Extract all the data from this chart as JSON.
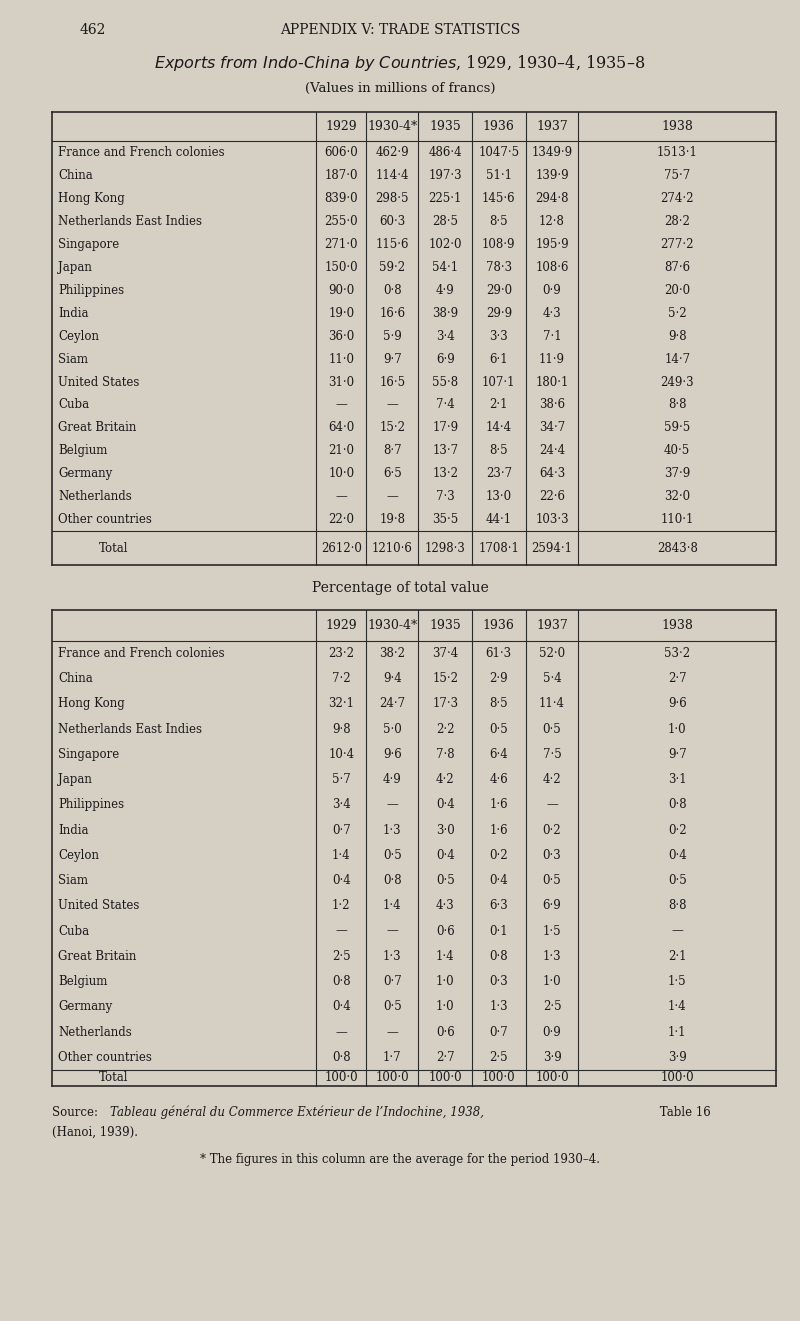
{
  "page_num": "462",
  "header": "APPENDIX V: TRADE STATISTICS",
  "title": "Exports from Indo-China by Countries, 1929, 1930–4, 1935–8",
  "subtitle": "(Values in millions of francs)",
  "table1_cols": [
    "",
    "1929",
    "1930-4*",
    "1935",
    "1936",
    "1937",
    "1938"
  ],
  "table1_rows": [
    [
      "France and French colonies",
      "606·0",
      "462·9",
      "486·4",
      "1047·5",
      "1349·9",
      "1513·1"
    ],
    [
      "China",
      "187·0",
      "114·4",
      "197·3",
      "51·1",
      "139·9",
      "75·7"
    ],
    [
      "Hong Kong",
      "839·0",
      "298·5",
      "225·1",
      "145·6",
      "294·8",
      "274·2"
    ],
    [
      "Netherlands East Indies",
      "255·0",
      "60·3",
      "28·5",
      "8·5",
      "12·8",
      "28·2"
    ],
    [
      "Singapore",
      "271·0",
      "115·6",
      "102·0",
      "108·9",
      "195·9",
      "277·2"
    ],
    [
      "Japan",
      "150·0",
      "59·2",
      "54·1",
      "78·3",
      "108·6",
      "87·6"
    ],
    [
      "Philippines",
      "90·0",
      "0·8",
      "4·9",
      "29·0",
      "0·9",
      "20·0"
    ],
    [
      "India",
      "19·0",
      "16·6",
      "38·9",
      "29·9",
      "4·3",
      "5·2"
    ],
    [
      "Ceylon",
      "36·0",
      "5·9",
      "3·4",
      "3·3",
      "7·1",
      "9·8"
    ],
    [
      "Siam",
      "11·0",
      "9·7",
      "6·9",
      "6·1",
      "11·9",
      "14·7"
    ],
    [
      "United States",
      "31·0",
      "16·5",
      "55·8",
      "107·1",
      "180·1",
      "249·3"
    ],
    [
      "Cuba",
      "—",
      "—",
      "7·4",
      "2·1",
      "38·6",
      "8·8"
    ],
    [
      "Great Britain",
      "64·0",
      "15·2",
      "17·9",
      "14·4",
      "34·7",
      "59·5"
    ],
    [
      "Belgium",
      "21·0",
      "8·7",
      "13·7",
      "8·5",
      "24·4",
      "40·5"
    ],
    [
      "Germany",
      "10·0",
      "6·5",
      "13·2",
      "23·7",
      "64·3",
      "37·9"
    ],
    [
      "Netherlands",
      "—",
      "—",
      "7·3",
      "13·0",
      "22·6",
      "32·0"
    ],
    [
      "Other countries",
      "22·0",
      "19·8",
      "35·5",
      "44·1",
      "103·3",
      "110·1"
    ]
  ],
  "table1_total": [
    "Total",
    "2612·0",
    "1210·6",
    "1298·3",
    "1708·1",
    "2594·1",
    "2843·8"
  ],
  "table2_title": "Percentage of total value",
  "table2_cols": [
    "",
    "1929",
    "1930-4*",
    "1935",
    "1936",
    "1937",
    "1938"
  ],
  "table2_rows": [
    [
      "France and French colonies",
      "23·2",
      "38·2",
      "37·4",
      "61·3",
      "52·0",
      "53·2"
    ],
    [
      "China",
      "7·2",
      "9·4",
      "15·2",
      "2·9",
      "5·4",
      "2·7"
    ],
    [
      "Hong Kong",
      "32·1",
      "24·7",
      "17·3",
      "8·5",
      "11·4",
      "9·6"
    ],
    [
      "Netherlands East Indies",
      "9·8",
      "5·0",
      "2·2",
      "0·5",
      "0·5",
      "1·0"
    ],
    [
      "Singapore",
      "10·4",
      "9·6",
      "7·8",
      "6·4",
      "7·5",
      "9·7"
    ],
    [
      "Japan",
      "5·7",
      "4·9",
      "4·2",
      "4·6",
      "4·2",
      "3·1"
    ],
    [
      "Philippines",
      "3·4",
      "—",
      "0·4",
      "1·6",
      "—",
      "0·8"
    ],
    [
      "India",
      "0·7",
      "1·3",
      "3·0",
      "1·6",
      "0·2",
      "0·2"
    ],
    [
      "Ceylon",
      "1·4",
      "0·5",
      "0·4",
      "0·2",
      "0·3",
      "0·4"
    ],
    [
      "Siam",
      "0·4",
      "0·8",
      "0·5",
      "0·4",
      "0·5",
      "0·5"
    ],
    [
      "United States",
      "1·2",
      "1·4",
      "4·3",
      "6·3",
      "6·9",
      "8·8"
    ],
    [
      "Cuba",
      "—",
      "—",
      "0·6",
      "0·1",
      "1·5",
      "—"
    ],
    [
      "Great Britain",
      "2·5",
      "1·3",
      "1·4",
      "0·8",
      "1·3",
      "2·1"
    ],
    [
      "Belgium",
      "0·8",
      "0·7",
      "1·0",
      "0·3",
      "1·0",
      "1·5"
    ],
    [
      "Germany",
      "0·4",
      "0·5",
      "1·0",
      "1·3",
      "2·5",
      "1·4"
    ],
    [
      "Netherlands",
      "—",
      "—",
      "0·6",
      "0·7",
      "0·9",
      "1·1"
    ],
    [
      "Other countries",
      "0·8",
      "1·7",
      "2·7",
      "2·5",
      "3·9",
      "3·9"
    ]
  ],
  "table2_total": [
    "Total",
    "100·0",
    "100·0",
    "100·0",
    "100·0",
    "100·0",
    "100·0"
  ],
  "source_line1": "Source: Tableau général du Commerce Extérieur de l’Indochine, 1938, Table 16",
  "source_line2": "(Hanoi, 1939).",
  "footnote": "* The figures in this column are the average for the period 1930–4.",
  "bg_color": "#d6cfc4",
  "text_color": "#1a1a1a",
  "table_bg": "#d6cfc4",
  "line_color": "#2a2a2a"
}
